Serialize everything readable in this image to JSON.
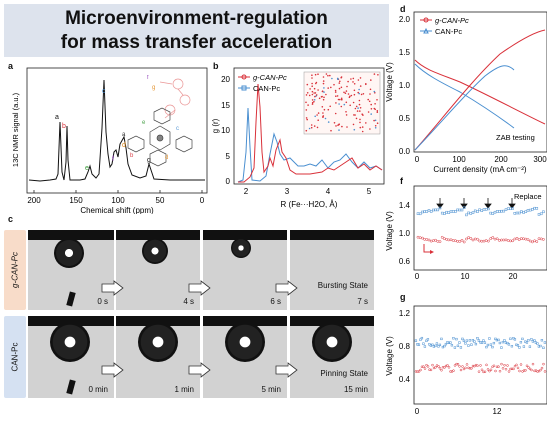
{
  "title": {
    "line1": "Microenvironment-regulation",
    "line2": "for mass transfer acceleration"
  },
  "panel_labels": {
    "a": "a",
    "b": "b",
    "c": "c",
    "d": "d",
    "f": "f",
    "g": "g"
  },
  "colors": {
    "red": "#d9313a",
    "blue": "#4a8fd0",
    "title_bg": "#dde3ed",
    "gcan_bg": "#f8dcc9",
    "can_bg": "#d5e1f2"
  },
  "panel_a": {
    "ylabel": "13C NMR signal (a.u.)",
    "xlabel": "Chemical shift (ppm)",
    "xticks": [
      "200",
      "150",
      "100",
      "50",
      "0"
    ],
    "peak_labels": [
      "a",
      "b",
      "c",
      "e",
      "f",
      "d",
      "g",
      "h"
    ]
  },
  "panel_b": {
    "ylabel": "g (r)",
    "xlabel": "R (Fe···H2O, Å)",
    "yticks": [
      "0",
      "5",
      "10",
      "15",
      "20"
    ],
    "xticks": [
      "2",
      "3",
      "4",
      "5"
    ],
    "legend": [
      "g-CAN-Pc",
      "CAN-Pc"
    ]
  },
  "panel_c": {
    "row_labels": [
      "g-CAN-Pc",
      "CAN-Pc"
    ],
    "top_times": [
      "0 s",
      "4 s",
      "6 s",
      "7 s"
    ],
    "bottom_times": [
      "0 min",
      "1 min",
      "5 min",
      "15 min"
    ],
    "top_state": "Bursting State",
    "bottom_state": "Pinning State"
  },
  "panel_d": {
    "ylabel": "Voltage (V)",
    "xlabel": "Current density (mA cm⁻²)",
    "yticks": [
      "0.0",
      "0.5",
      "1.0",
      "1.5",
      "2.0"
    ],
    "xticks": [
      "0",
      "100",
      "200",
      "300"
    ],
    "legend": [
      "g-CAN-Pc",
      "CAN-Pc"
    ],
    "annotation": "ZAB testing"
  },
  "panel_f": {
    "ylabel": "Voltage (V)",
    "yticks": [
      "0.6",
      "1.0",
      "1.4"
    ],
    "xticks": [
      "0",
      "10",
      "20"
    ],
    "annotation": "Replace"
  },
  "panel_g": {
    "ylabel": "Voltage (V)",
    "yticks": [
      "0.4",
      "0.8",
      "1.2"
    ],
    "xticks": [
      "0",
      "12"
    ]
  }
}
